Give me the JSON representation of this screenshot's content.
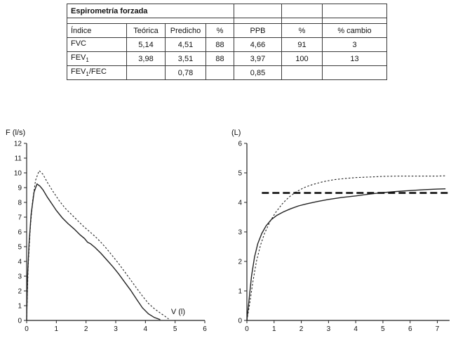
{
  "table": {
    "title": "Espirometría forzada",
    "headers": [
      "Índice",
      "Teórica",
      "Predicho",
      "%",
      "PPB",
      "%",
      "% cambio"
    ],
    "rows": [
      {
        "label_main": "FVC",
        "label_sub": "",
        "label_rest": "",
        "values": [
          "5,14",
          "4,51",
          "88",
          "4,66",
          "91",
          "3"
        ]
      },
      {
        "label_main": "FEV",
        "label_sub": "1",
        "label_rest": "",
        "values": [
          "3,98",
          "3,51",
          "88",
          "3,97",
          "100",
          "13"
        ]
      },
      {
        "label_main": "FEV",
        "label_sub": "1",
        "label_rest": "/FEC",
        "values": [
          "",
          "0,78",
          "",
          "0,85",
          "",
          ""
        ]
      }
    ]
  },
  "chart_data": [
    {
      "type": "line",
      "title": "",
      "xlabel": "V (l)",
      "ylabel": "F (l/s)",
      "xlim": [
        0,
        6
      ],
      "ylim": [
        0,
        12
      ],
      "xticks": [
        0,
        1,
        2,
        3,
        4,
        5,
        6
      ],
      "yticks": [
        0,
        1,
        2,
        3,
        4,
        5,
        6,
        7,
        8,
        9,
        10,
        11,
        12
      ],
      "grid": false,
      "legend": "none",
      "series": [
        {
          "name": "solid-curve",
          "style": "solid",
          "points": [
            [
              0,
              0
            ],
            [
              0.03,
              3.0
            ],
            [
              0.08,
              5.2
            ],
            [
              0.15,
              7.2
            ],
            [
              0.25,
              8.7
            ],
            [
              0.35,
              9.25
            ],
            [
              0.45,
              9.1
            ],
            [
              0.55,
              8.85
            ],
            [
              0.7,
              8.35
            ],
            [
              0.85,
              7.9
            ],
            [
              1.0,
              7.45
            ],
            [
              1.2,
              6.95
            ],
            [
              1.4,
              6.55
            ],
            [
              1.6,
              6.2
            ],
            [
              1.8,
              5.8
            ],
            [
              1.95,
              5.55
            ],
            [
              2.05,
              5.3
            ],
            [
              2.15,
              5.2
            ],
            [
              2.3,
              4.95
            ],
            [
              2.5,
              4.55
            ],
            [
              2.7,
              4.1
            ],
            [
              2.9,
              3.65
            ],
            [
              3.1,
              3.15
            ],
            [
              3.3,
              2.6
            ],
            [
              3.5,
              2.05
            ],
            [
              3.7,
              1.45
            ],
            [
              3.9,
              0.85
            ],
            [
              4.1,
              0.45
            ],
            [
              4.3,
              0.2
            ],
            [
              4.5,
              0.05
            ]
          ]
        },
        {
          "name": "dotted-curve",
          "style": "dotted",
          "points": [
            [
              0,
              0
            ],
            [
              0.05,
              3.6
            ],
            [
              0.12,
              6.2
            ],
            [
              0.2,
              8.1
            ],
            [
              0.3,
              9.5
            ],
            [
              0.42,
              10.15
            ],
            [
              0.55,
              9.9
            ],
            [
              0.7,
              9.35
            ],
            [
              0.9,
              8.7
            ],
            [
              1.1,
              8.1
            ],
            [
              1.3,
              7.6
            ],
            [
              1.5,
              7.2
            ],
            [
              1.7,
              6.8
            ],
            [
              1.9,
              6.4
            ],
            [
              2.1,
              6.05
            ],
            [
              2.3,
              5.7
            ],
            [
              2.5,
              5.3
            ],
            [
              2.7,
              4.85
            ],
            [
              2.9,
              4.35
            ],
            [
              3.1,
              3.85
            ],
            [
              3.3,
              3.3
            ],
            [
              3.5,
              2.75
            ],
            [
              3.7,
              2.2
            ],
            [
              3.9,
              1.65
            ],
            [
              4.1,
              1.15
            ],
            [
              4.3,
              0.8
            ],
            [
              4.5,
              0.5
            ],
            [
              4.65,
              0.3
            ],
            [
              4.78,
              0.1
            ]
          ]
        }
      ]
    },
    {
      "type": "line",
      "title": "",
      "xlabel": "",
      "ylabel": "(L)",
      "xlim": [
        0,
        7.45
      ],
      "ylim": [
        0,
        6
      ],
      "xticks": [
        0,
        1,
        2,
        3,
        4,
        5,
        6,
        7
      ],
      "yticks": [
        0,
        1,
        2,
        3,
        4,
        5,
        6
      ],
      "grid": false,
      "legend": "none",
      "hline": {
        "y": 4.32,
        "x0": 0.55,
        "x1": 7.38,
        "style": "dashed-bold"
      },
      "series": [
        {
          "name": "solid-curve",
          "style": "solid",
          "points": [
            [
              0,
              0
            ],
            [
              0.08,
              0.7
            ],
            [
              0.17,
              1.5
            ],
            [
              0.28,
              2.15
            ],
            [
              0.4,
              2.6
            ],
            [
              0.55,
              2.95
            ],
            [
              0.7,
              3.2
            ],
            [
              0.9,
              3.42
            ],
            [
              1.1,
              3.56
            ],
            [
              1.35,
              3.68
            ],
            [
              1.6,
              3.78
            ],
            [
              1.9,
              3.88
            ],
            [
              2.2,
              3.95
            ],
            [
              2.6,
              4.03
            ],
            [
              3.0,
              4.1
            ],
            [
              3.5,
              4.17
            ],
            [
              4.0,
              4.22
            ],
            [
              4.5,
              4.28
            ],
            [
              5.0,
              4.33
            ],
            [
              5.5,
              4.37
            ],
            [
              6.0,
              4.4
            ],
            [
              6.5,
              4.43
            ],
            [
              7.0,
              4.45
            ],
            [
              7.3,
              4.46
            ]
          ]
        },
        {
          "name": "dotted-curve",
          "style": "dotted",
          "points": [
            [
              0,
              0
            ],
            [
              0.1,
              0.55
            ],
            [
              0.22,
              1.3
            ],
            [
              0.35,
              2.0
            ],
            [
              0.5,
              2.55
            ],
            [
              0.65,
              2.95
            ],
            [
              0.85,
              3.35
            ],
            [
              1.05,
              3.65
            ],
            [
              1.3,
              3.95
            ],
            [
              1.55,
              4.18
            ],
            [
              1.8,
              4.35
            ],
            [
              2.1,
              4.5
            ],
            [
              2.4,
              4.6
            ],
            [
              2.8,
              4.7
            ],
            [
              3.2,
              4.77
            ],
            [
              3.6,
              4.81
            ],
            [
              4.0,
              4.84
            ],
            [
              4.5,
              4.86
            ],
            [
              5.0,
              4.88
            ],
            [
              5.5,
              4.89
            ],
            [
              6.0,
              4.89
            ],
            [
              6.5,
              4.89
            ],
            [
              7.0,
              4.89
            ],
            [
              7.3,
              4.9
            ]
          ]
        }
      ]
    }
  ]
}
